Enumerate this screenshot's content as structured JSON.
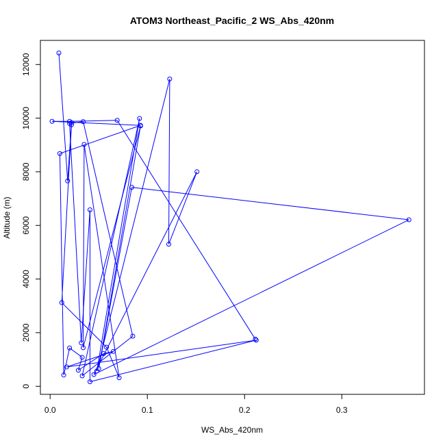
{
  "chart_data": {
    "type": "line",
    "title": "ATOM3 Northeast_Pacific_2 WS_Abs_420nm",
    "xlabel": "WS_Abs_420nm",
    "ylabel": "Altitude (m)",
    "xlim": [
      -0.01,
      0.385
    ],
    "ylim": [
      -300,
      12900
    ],
    "xticks": [
      0.0,
      0.1,
      0.2,
      0.3
    ],
    "xtick_labels": [
      "0.0",
      "0.1",
      "0.2",
      "0.3"
    ],
    "yticks": [
      0,
      2000,
      4000,
      6000,
      8000,
      10000,
      12000
    ],
    "ytick_labels": [
      "0",
      "2000",
      "4000",
      "6000",
      "8000",
      "10000",
      "12000"
    ],
    "grid": false,
    "legend": "none",
    "series": [
      {
        "color": "#0000ff",
        "marker": "open-circle",
        "points": [
          {
            "x": 0.009,
            "y": 12430
          },
          {
            "x": 0.018,
            "y": 7660
          },
          {
            "x": 0.022,
            "y": 9830
          },
          {
            "x": 0.022,
            "y": 9750
          },
          {
            "x": 0.012,
            "y": 3120
          },
          {
            "x": 0.058,
            "y": 1460
          },
          {
            "x": 0.071,
            "y": 320
          },
          {
            "x": 0.035,
            "y": 9020
          },
          {
            "x": 0.034,
            "y": 1440
          },
          {
            "x": 0.093,
            "y": 9710
          },
          {
            "x": 0.05,
            "y": 660
          },
          {
            "x": 0.084,
            "y": 7420
          },
          {
            "x": 0.369,
            "y": 6210
          },
          {
            "x": 0.045,
            "y": 440
          },
          {
            "x": 0.151,
            "y": 8000
          },
          {
            "x": 0.122,
            "y": 5300
          },
          {
            "x": 0.123,
            "y": 11460
          },
          {
            "x": 0.048,
            "y": 570
          },
          {
            "x": 0.092,
            "y": 9990
          },
          {
            "x": 0.033,
            "y": 390
          },
          {
            "x": 0.085,
            "y": 1870
          },
          {
            "x": 0.034,
            "y": 9870
          },
          {
            "x": 0.02,
            "y": 9800
          },
          {
            "x": 0.032,
            "y": 1620
          },
          {
            "x": 0.041,
            "y": 6580
          },
          {
            "x": 0.041,
            "y": 170
          },
          {
            "x": 0.212,
            "y": 1720
          },
          {
            "x": 0.017,
            "y": 720
          },
          {
            "x": 0.065,
            "y": 1300
          },
          {
            "x": 0.055,
            "y": 1220
          },
          {
            "x": 0.029,
            "y": 600
          },
          {
            "x": 0.033,
            "y": 1080
          },
          {
            "x": 0.02,
            "y": 1430
          },
          {
            "x": 0.014,
            "y": 420
          },
          {
            "x": 0.01,
            "y": 8680
          },
          {
            "x": 0.093,
            "y": 9730
          },
          {
            "x": 0.002,
            "y": 9880
          },
          {
            "x": 0.02,
            "y": 9880
          },
          {
            "x": 0.069,
            "y": 9920
          },
          {
            "x": 0.211,
            "y": 1760
          }
        ]
      }
    ]
  }
}
